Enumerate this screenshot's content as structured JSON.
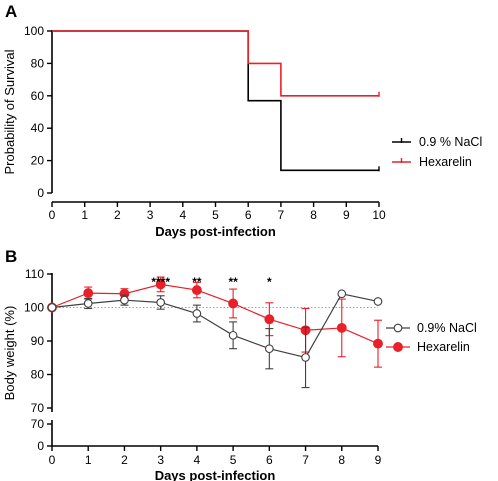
{
  "panels": {
    "a": {
      "letter": "A"
    },
    "b": {
      "letter": "B"
    }
  },
  "chart_data": [
    {
      "type": "line",
      "step": true,
      "xlabel": "Days post-infection",
      "ylabel": "Probability of Survival",
      "xlim": [
        0,
        10
      ],
      "ylim": [
        0,
        100
      ],
      "xticks": [
        "0",
        "1",
        "2",
        "3",
        "4",
        "5",
        "6",
        "7",
        "8",
        "9",
        "10"
      ],
      "yticks": [
        "0",
        "20",
        "40",
        "60",
        "80",
        "100"
      ],
      "legend_position": "right",
      "series": [
        {
          "name": "0.9 % NaCl",
          "color": "#000000",
          "x": [
            0,
            6,
            7,
            10
          ],
          "values": [
            100,
            57,
            14,
            14
          ]
        },
        {
          "name": "Hexarelin",
          "color": "#e8202a",
          "x": [
            0,
            6,
            7,
            10
          ],
          "values": [
            100,
            80,
            60,
            60
          ]
        }
      ]
    },
    {
      "type": "line",
      "xlabel": "Days post-infection",
      "ylabel": "Body weight (%)",
      "xlim": [
        0,
        9
      ],
      "ylim": [
        70,
        110
      ],
      "axis_break": true,
      "xticks": [
        "0",
        "1",
        "2",
        "3",
        "4",
        "5",
        "6",
        "7",
        "8",
        "9"
      ],
      "yticks_upper": [
        "70",
        "80",
        "90",
        "100",
        "110"
      ],
      "yticks_lower": [
        "0",
        "70"
      ],
      "reference_line": 100,
      "legend_position": "right",
      "annotations": [
        {
          "x": 3,
          "text": "****"
        },
        {
          "x": 4,
          "text": "**"
        },
        {
          "x": 5,
          "text": "**"
        },
        {
          "x": 6,
          "text": "*"
        }
      ],
      "series": [
        {
          "name": "0.9% NaCl",
          "color": "#404040",
          "marker": "open-circle",
          "x": [
            0,
            1,
            2,
            3,
            4,
            5,
            6,
            7,
            8,
            9
          ],
          "values": [
            100,
            101.2,
            102.2,
            101.5,
            98.2,
            91.7,
            87.7,
            85.1,
            104.1,
            101.8
          ],
          "errors": [
            0.5,
            1.5,
            1.5,
            2,
            2.5,
            4,
            6,
            9,
            0,
            0
          ]
        },
        {
          "name": "Hexarelin",
          "color": "#e8202a",
          "marker": "filled-circle",
          "x": [
            0,
            1,
            2,
            3,
            4,
            5,
            6,
            7,
            8,
            9
          ],
          "values": [
            100,
            104.3,
            104.1,
            106.9,
            105.2,
            101.2,
            96.5,
            93.2,
            93.9,
            89.2
          ],
          "errors": [
            0.5,
            1.8,
            1.5,
            2.2,
            2.3,
            4.3,
            4.9,
            6.5,
            8.6,
            7
          ]
        }
      ]
    }
  ]
}
